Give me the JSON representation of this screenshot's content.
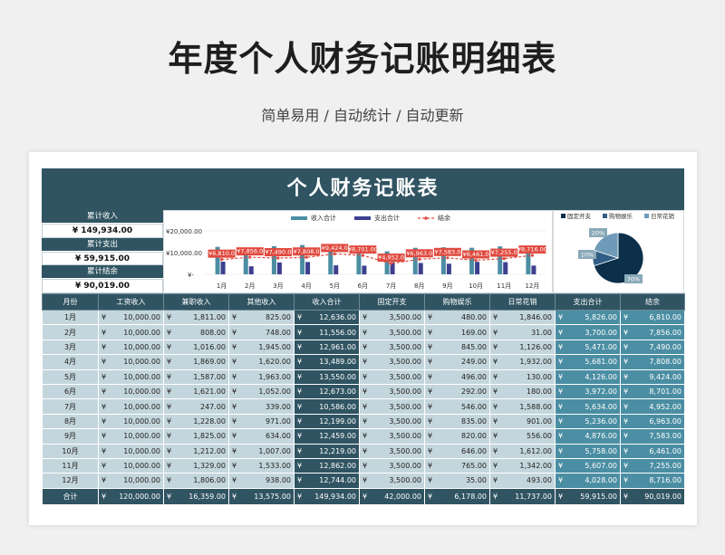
{
  "page": {
    "title": "年度个人财务记账明细表",
    "subtitle": "简单易用 / 自动统计 / 自动更新"
  },
  "sheet": {
    "banner": "个人财务记账表",
    "summary": [
      {
        "label": "累计收入",
        "value": "¥ 149,934.00"
      },
      {
        "label": "累计支出",
        "value": "¥ 59,915.00"
      },
      {
        "label": "累计结余",
        "value": "¥ 90,019.00"
      }
    ]
  },
  "chart_data": [
    {
      "type": "bar",
      "legend": [
        "收入合计",
        "支出合计",
        "结余"
      ],
      "yticks": [
        "¥20,000.00",
        "¥10,000.00",
        "¥-"
      ],
      "ylim": [
        0,
        20000
      ],
      "categories": [
        "1月",
        "2月",
        "3月",
        "4月",
        "5月",
        "6月",
        "7月",
        "8月",
        "9月",
        "10月",
        "11月",
        "12月"
      ],
      "series": [
        {
          "name": "收入合计",
          "color": "#4b8ea3",
          "values": [
            12636,
            11556,
            12961,
            13489,
            13550,
            12673,
            10586,
            12199,
            12459,
            12219,
            12862,
            12744
          ]
        },
        {
          "name": "支出合计",
          "color": "#3d3f8f",
          "values": [
            5826,
            3700,
            5471,
            5681,
            4126,
            3972,
            5634,
            5236,
            4876,
            5758,
            5607,
            4028
          ]
        },
        {
          "name": "结余",
          "color": "#e04a3f",
          "values": [
            6810,
            7856,
            7490,
            7808,
            9424,
            8701,
            4952,
            6963,
            7583,
            6461,
            7255,
            8716
          ]
        }
      ],
      "data_labels": [
        "¥6,810.0",
        "¥7,856.0",
        "¥7,490.0",
        "¥7,808.0",
        "¥9,424.0",
        "¥8,701.00",
        "¥4,952.0",
        "¥6,963.0",
        "¥7,583.0",
        "¥6,461.0",
        "¥7,255.0",
        "¥8,716.00"
      ]
    },
    {
      "type": "pie",
      "legend": [
        "固定开支",
        "购物娱乐",
        "日常花销"
      ],
      "slices": [
        {
          "name": "固定开支",
          "value": 70,
          "label": "70%",
          "color": "#0c2f4a"
        },
        {
          "name": "购物娱乐",
          "value": 10,
          "label": "10%",
          "color": "#305e86"
        },
        {
          "name": "日常花销",
          "value": 20,
          "label": "20%",
          "color": "#6f9bb8"
        }
      ]
    }
  ],
  "table": {
    "headers": [
      "月份",
      "工资收入",
      "兼职收入",
      "其他收入",
      "收入合计",
      "固定开支",
      "购物娱乐",
      "日常花销",
      "支出合计",
      "结余"
    ],
    "currency": "¥",
    "rows": [
      [
        "1月",
        "10,000.00",
        "1,811.00",
        "825.00",
        "12,636.00",
        "3,500.00",
        "480.00",
        "1,846.00",
        "5,826.00",
        "6,810.00"
      ],
      [
        "2月",
        "10,000.00",
        "808.00",
        "748.00",
        "11,556.00",
        "3,500.00",
        "169.00",
        "31.00",
        "3,700.00",
        "7,856.00"
      ],
      [
        "3月",
        "10,000.00",
        "1,016.00",
        "1,945.00",
        "12,961.00",
        "3,500.00",
        "845.00",
        "1,126.00",
        "5,471.00",
        "7,490.00"
      ],
      [
        "4月",
        "10,000.00",
        "1,869.00",
        "1,620.00",
        "13,489.00",
        "3,500.00",
        "249.00",
        "1,932.00",
        "5,681.00",
        "7,808.00"
      ],
      [
        "5月",
        "10,000.00",
        "1,587.00",
        "1,963.00",
        "13,550.00",
        "3,500.00",
        "496.00",
        "130.00",
        "4,126.00",
        "9,424.00"
      ],
      [
        "6月",
        "10,000.00",
        "1,621.00",
        "1,052.00",
        "12,673.00",
        "3,500.00",
        "292.00",
        "180.00",
        "3,972.00",
        "8,701.00"
      ],
      [
        "7月",
        "10,000.00",
        "247.00",
        "339.00",
        "10,586.00",
        "3,500.00",
        "546.00",
        "1,588.00",
        "5,634.00",
        "4,952.00"
      ],
      [
        "8月",
        "10,000.00",
        "1,228.00",
        "971.00",
        "12,199.00",
        "3,500.00",
        "835.00",
        "901.00",
        "5,236.00",
        "6,963.00"
      ],
      [
        "9月",
        "10,000.00",
        "1,825.00",
        "634.00",
        "12,459.00",
        "3,500.00",
        "820.00",
        "556.00",
        "4,876.00",
        "7,583.00"
      ],
      [
        "10月",
        "10,000.00",
        "1,212.00",
        "1,007.00",
        "12,219.00",
        "3,500.00",
        "646.00",
        "1,612.00",
        "5,758.00",
        "6,461.00"
      ],
      [
        "11月",
        "10,000.00",
        "1,329.00",
        "1,533.00",
        "12,862.00",
        "3,500.00",
        "765.00",
        "1,342.00",
        "5,607.00",
        "7,255.00"
      ],
      [
        "12月",
        "10,000.00",
        "1,806.00",
        "938.00",
        "12,744.00",
        "3,500.00",
        "35.00",
        "493.00",
        "4,028.00",
        "8,716.00"
      ]
    ],
    "total": [
      "合计",
      "120,000.00",
      "16,359.00",
      "13,575.00",
      "149,934.00",
      "42,000.00",
      "6,178.00",
      "11,737.00",
      "59,915.00",
      "90,019.00"
    ]
  }
}
